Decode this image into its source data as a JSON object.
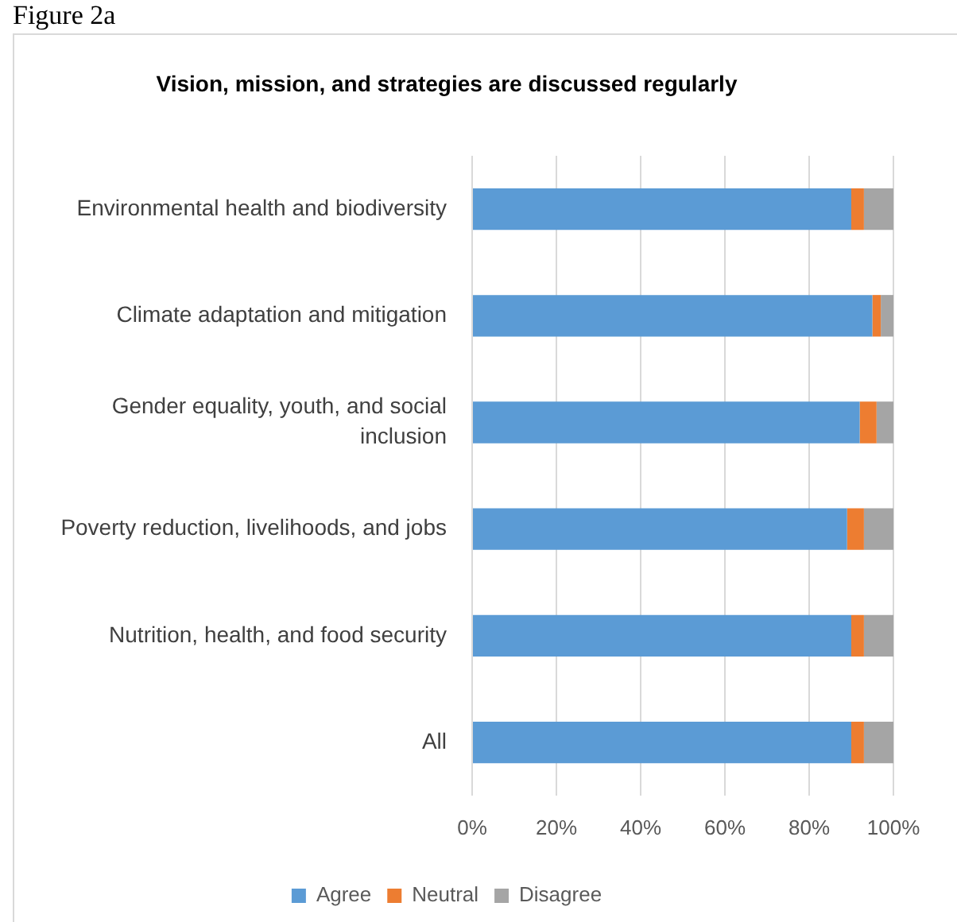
{
  "chart_data": {
    "type": "bar",
    "orientation": "horizontal",
    "stacked": true,
    "title": "Vision, mission, and strategies are discussed regularly",
    "annotations": [
      "Figure 2a"
    ],
    "categories": [
      "Environmental health and biodiversity",
      "Climate adaptation and mitigation",
      "Gender equality, youth, and social inclusion",
      "Poverty reduction, livelihoods, and jobs",
      "Nutrition, health, and food security",
      "All"
    ],
    "series": [
      {
        "name": "Agree",
        "color": "#5b9bd5",
        "values": [
          90,
          95,
          92,
          89,
          90,
          90
        ]
      },
      {
        "name": "Neutral",
        "color": "#ed7d31",
        "values": [
          3,
          2,
          4,
          4,
          3,
          3
        ]
      },
      {
        "name": "Disagree",
        "color": "#a5a5a5",
        "values": [
          7,
          3,
          4,
          7,
          7,
          7
        ]
      }
    ],
    "xlim": [
      0,
      100
    ],
    "xticks": [
      {
        "value": 0,
        "label": "0%"
      },
      {
        "value": 20,
        "label": "20%"
      },
      {
        "value": 40,
        "label": "40%"
      },
      {
        "value": 60,
        "label": "60%"
      },
      {
        "value": 80,
        "label": "80%"
      },
      {
        "value": 100,
        "label": "100%"
      }
    ],
    "grid": "x",
    "legend": "bottom"
  }
}
